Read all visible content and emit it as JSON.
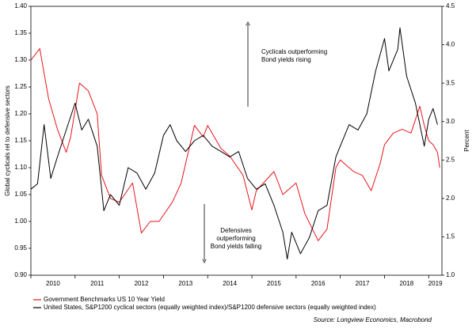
{
  "chart_data": {
    "type": "line",
    "y_label": "Global cyclicals rel to defensive sectors",
    "y2_label": "Percent",
    "annotations": [
      [
        "Cyclicals outperforming",
        "Bond yields rising"
      ],
      [
        "Defensives",
        "outperforming",
        "Bond yields falling"
      ]
    ],
    "source": "Source: Longview Economics, Macrobond",
    "xlim": [
      2010,
      2019.3
    ],
    "xticks": [
      {
        "value": 2010,
        "label": "2010"
      },
      {
        "value": 2011,
        "label": "2011"
      },
      {
        "value": 2012,
        "label": "2012"
      },
      {
        "value": 2013,
        "label": "2013"
      },
      {
        "value": 2014,
        "label": "2014"
      },
      {
        "value": 2015,
        "label": "2015"
      },
      {
        "value": 2016,
        "label": "2016"
      },
      {
        "value": 2017,
        "label": "2017"
      },
      {
        "value": 2018,
        "label": "2018"
      },
      {
        "value": 2019,
        "label": "2019"
      }
    ],
    "ylim": [
      0.9,
      1.4
    ],
    "yticks": [
      {
        "value": 0.9,
        "label": "0.90"
      },
      0.95,
      {
        "value": 1.0,
        "label": "1.00"
      },
      1.05,
      {
        "value": 1.1,
        "label": "1.10"
      },
      1.15,
      {
        "value": 1.2,
        "label": "1.20"
      },
      1.25,
      {
        "value": 1.3,
        "label": "1.30"
      },
      1.35,
      {
        "value": 1.4,
        "label": "1.40"
      }
    ],
    "y2lim": [
      1.0,
      4.5
    ],
    "y2ticks": [
      {
        "value": 1.0,
        "label": "1.0"
      },
      1.5,
      {
        "value": 2.0,
        "label": "2.0"
      },
      2.5,
      {
        "value": 3.0,
        "label": "3.0"
      },
      3.5,
      {
        "value": 4.0,
        "label": "4.0"
      },
      4.5
    ],
    "series": [
      {
        "name": "Government Benchmarks US 10 Year Yield",
        "color": "#e8141b",
        "axis": "y2",
        "x": [
          2010.0,
          2010.2,
          2010.4,
          2010.6,
          2010.8,
          2010.9,
          2011.1,
          2011.3,
          2011.5,
          2011.6,
          2011.8,
          2012.0,
          2012.3,
          2012.5,
          2012.7,
          2012.9,
          2013.2,
          2013.4,
          2013.6,
          2013.7,
          2013.9,
          2014.0,
          2014.3,
          2014.5,
          2014.8,
          2015.0,
          2015.1,
          2015.5,
          2015.7,
          2016.0,
          2016.2,
          2016.5,
          2016.7,
          2016.9,
          2017.0,
          2017.3,
          2017.5,
          2017.7,
          2017.9,
          2018.0,
          2018.2,
          2018.4,
          2018.6,
          2018.8,
          2018.9,
          2019.0,
          2019.1,
          2019.2,
          2019.25
        ],
        "values": [
          3.8,
          3.95,
          3.3,
          2.9,
          2.6,
          2.8,
          3.5,
          3.4,
          3.1,
          2.3,
          2.0,
          1.95,
          2.2,
          1.55,
          1.7,
          1.7,
          1.95,
          2.2,
          2.7,
          2.95,
          2.8,
          2.95,
          2.65,
          2.55,
          2.3,
          1.85,
          2.1,
          2.35,
          2.05,
          2.2,
          1.8,
          1.45,
          1.6,
          2.4,
          2.5,
          2.35,
          2.3,
          2.1,
          2.45,
          2.7,
          2.85,
          2.9,
          2.85,
          3.2,
          2.95,
          2.75,
          2.7,
          2.6,
          2.4
        ]
      },
      {
        "name": "United States, S&P1200 cyclical sectors (equally weighted index)/S&P1200 defensive sectors (equally weighted index)",
        "color": "#000000",
        "axis": "y",
        "x": [
          2010.0,
          2010.15,
          2010.3,
          2010.45,
          2010.6,
          2010.8,
          2011.0,
          2011.15,
          2011.3,
          2011.5,
          2011.65,
          2011.8,
          2012.0,
          2012.2,
          2012.4,
          2012.6,
          2012.8,
          2013.0,
          2013.15,
          2013.3,
          2013.5,
          2013.7,
          2013.9,
          2014.1,
          2014.3,
          2014.5,
          2014.7,
          2014.9,
          2015.1,
          2015.3,
          2015.5,
          2015.7,
          2015.8,
          2015.9,
          2016.1,
          2016.3,
          2016.5,
          2016.7,
          2016.9,
          2017.0,
          2017.2,
          2017.4,
          2017.6,
          2017.8,
          2018.0,
          2018.1,
          2018.3,
          2018.35,
          2018.5,
          2018.7,
          2018.9,
          2019.0,
          2019.1,
          2019.2
        ],
        "values": [
          1.06,
          1.07,
          1.18,
          1.08,
          1.12,
          1.17,
          1.22,
          1.17,
          1.19,
          1.14,
          1.02,
          1.05,
          1.03,
          1.1,
          1.09,
          1.06,
          1.09,
          1.16,
          1.18,
          1.15,
          1.13,
          1.15,
          1.16,
          1.14,
          1.13,
          1.12,
          1.13,
          1.08,
          1.06,
          1.07,
          1.03,
          0.98,
          0.93,
          0.98,
          0.94,
          0.97,
          1.02,
          1.03,
          1.12,
          1.14,
          1.18,
          1.17,
          1.2,
          1.28,
          1.34,
          1.28,
          1.32,
          1.36,
          1.27,
          1.22,
          1.14,
          1.19,
          1.21,
          1.18
        ]
      }
    ]
  }
}
